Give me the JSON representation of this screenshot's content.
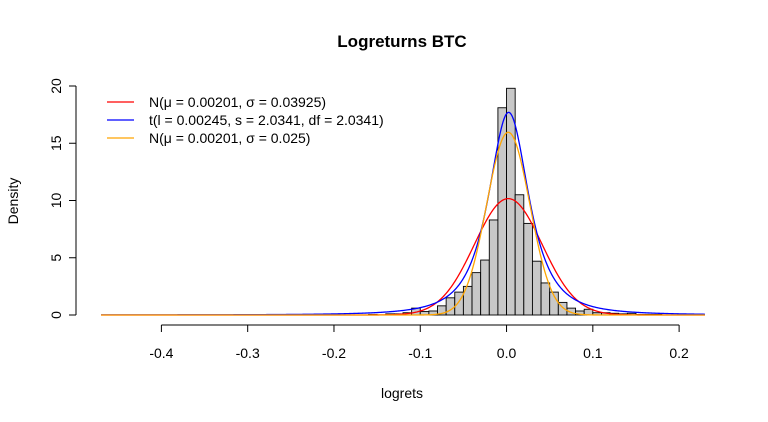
{
  "chart_data": {
    "type": "bar",
    "title": "Logreturns BTC",
    "xlabel": "logrets",
    "ylabel": "Density",
    "xlim": [
      -0.47,
      0.23
    ],
    "ylim": [
      0,
      20
    ],
    "x_ticks": [
      -0.4,
      -0.3,
      -0.2,
      -0.1,
      0.0,
      0.1,
      0.2
    ],
    "x_tick_labels": [
      "-0.4",
      "-0.3",
      "-0.2",
      "-0.1",
      "0.0",
      "0.1",
      "0.2"
    ],
    "y_ticks": [
      0,
      5,
      10,
      15,
      20
    ],
    "y_tick_labels": [
      "0",
      "5",
      "10",
      "15",
      "20"
    ],
    "bin_width": 0.01,
    "bin_starts": [
      -0.21,
      -0.2,
      -0.19,
      -0.18,
      -0.17,
      -0.16,
      -0.15,
      -0.14,
      -0.13,
      -0.12,
      -0.11,
      -0.1,
      -0.09,
      -0.08,
      -0.07,
      -0.06,
      -0.05,
      -0.04,
      -0.03,
      -0.02,
      -0.01,
      0.0,
      0.01,
      0.02,
      0.03,
      0.04,
      0.05,
      0.06,
      0.07,
      0.08,
      0.09,
      0.1,
      0.11,
      0.12,
      0.13,
      0.14,
      0.15,
      0.16,
      0.17
    ],
    "densities": [
      0.05,
      0.0,
      0.0,
      0.0,
      0.0,
      0.05,
      0.0,
      0.1,
      0.1,
      0.2,
      0.6,
      0.3,
      0.35,
      0.8,
      1.5,
      2.0,
      2.5,
      3.7,
      4.8,
      8.3,
      18.1,
      19.8,
      10.5,
      8.0,
      4.7,
      2.8,
      2.0,
      1.1,
      0.6,
      0.35,
      0.5,
      0.2,
      0.2,
      0.15,
      0.1,
      0.15,
      0.05,
      0.05,
      0.05
    ],
    "legend_position": "top-left",
    "series": [
      {
        "name": "N(μ = 0.00201, σ = 0.03925)",
        "distribution": "normal",
        "mean": 0.00201,
        "sd": 0.03925,
        "color": "#ff0000"
      },
      {
        "name": "t(l = 0.00245, s = 2.0341, df = 2.0341)",
        "distribution": "t",
        "location": 0.00245,
        "peak_density": 17.7,
        "color": "#0000ff"
      },
      {
        "name": "N(μ = 0.00201, σ = 0.025)",
        "distribution": "normal",
        "mean": 0.00201,
        "sd": 0.025,
        "color": "#ffa500"
      }
    ]
  }
}
